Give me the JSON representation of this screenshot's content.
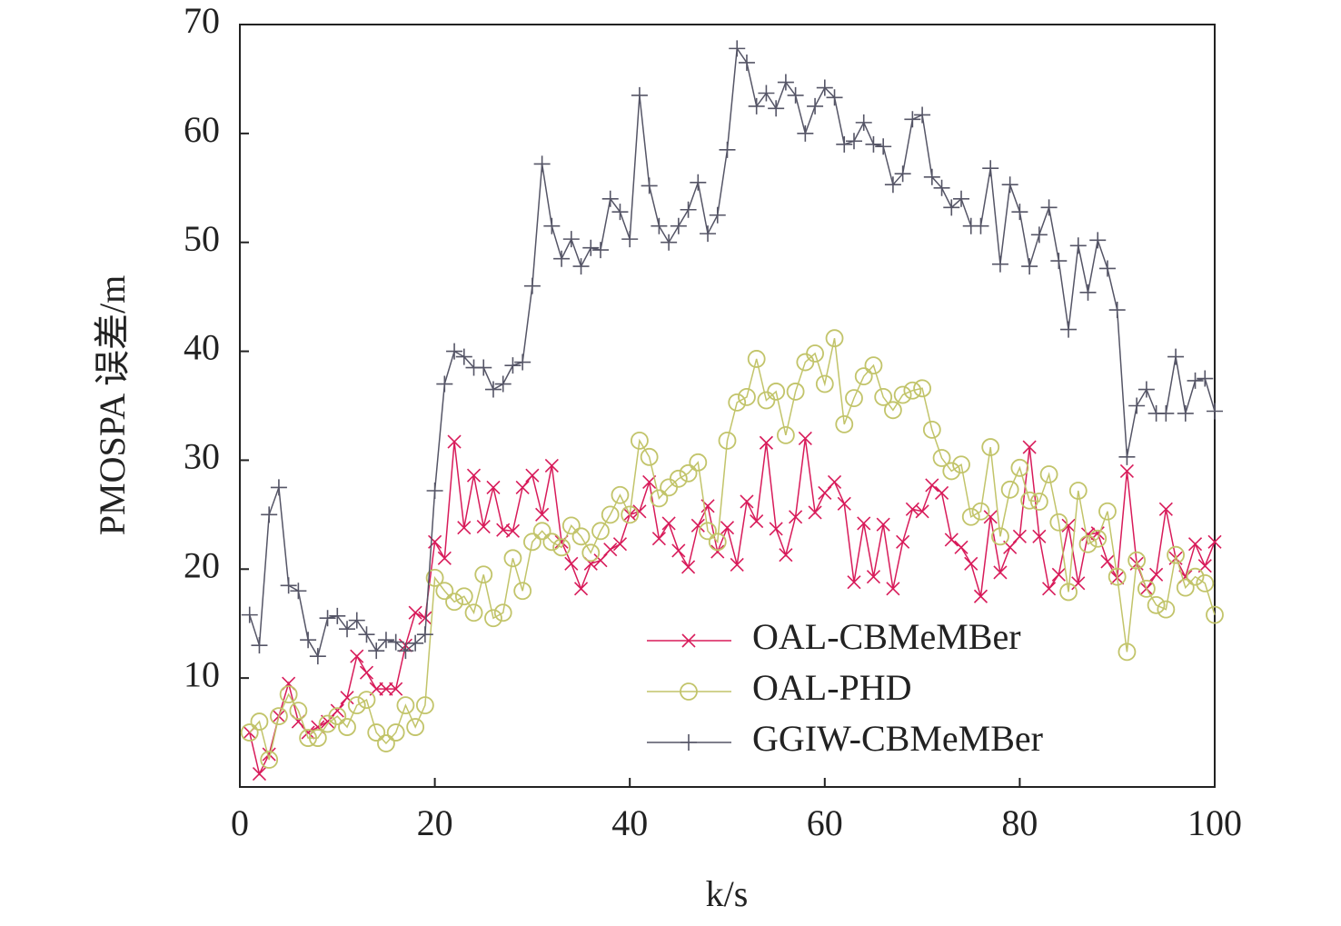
{
  "chart_data": {
    "type": "line",
    "xlabel": "k/s",
    "ylabel": "PMOSPA 误差/m",
    "xlim": [
      0,
      100
    ],
    "ylim": [
      0,
      70
    ],
    "xticks": [
      0,
      20,
      40,
      60,
      80,
      100
    ],
    "yticks": [
      10,
      20,
      30,
      40,
      50,
      60,
      70
    ],
    "legend": "lower right",
    "x": [
      1,
      2,
      3,
      4,
      5,
      6,
      7,
      8,
      9,
      10,
      11,
      12,
      13,
      14,
      15,
      16,
      17,
      18,
      19,
      20,
      21,
      22,
      23,
      24,
      25,
      26,
      27,
      28,
      29,
      30,
      31,
      32,
      33,
      34,
      35,
      36,
      37,
      38,
      39,
      40,
      41,
      42,
      43,
      44,
      45,
      46,
      47,
      48,
      49,
      50,
      51,
      52,
      53,
      54,
      55,
      56,
      57,
      58,
      59,
      60,
      61,
      62,
      63,
      64,
      65,
      66,
      67,
      68,
      69,
      70,
      71,
      72,
      73,
      74,
      75,
      76,
      77,
      78,
      79,
      80,
      81,
      82,
      83,
      84,
      85,
      86,
      87,
      88,
      89,
      90,
      91,
      92,
      93,
      94,
      95,
      96,
      97,
      98,
      99,
      100
    ],
    "series": [
      {
        "name": "OAL-CBMeMBer",
        "color": "#d81b5a",
        "marker": "x",
        "values": [
          5,
          1.2,
          3,
          6.5,
          9.5,
          6,
          5,
          5.5,
          6,
          7,
          8.2,
          12,
          10.5,
          9,
          9,
          9,
          13,
          16,
          15.5,
          22.5,
          21,
          31.7,
          23.8,
          28.6,
          23.9,
          27.5,
          23.6,
          23.5,
          27.5,
          28.6,
          25,
          29.5,
          22.5,
          20.5,
          18.2,
          20.5,
          20.8,
          21.8,
          22.3,
          25,
          25.3,
          28,
          22.8,
          24.2,
          21.7,
          20.2,
          24,
          25.8,
          21.6,
          23.8,
          20.4,
          26.2,
          24.4,
          31.6,
          23.7,
          21.3,
          24.8,
          32,
          25.2,
          27,
          28,
          26,
          18.8,
          24.2,
          19.3,
          24.1,
          18.2,
          22.5,
          25.5,
          25.3,
          27.7,
          27,
          22.7,
          22,
          20.5,
          17.5,
          24.8,
          19.7,
          22,
          23,
          31.2,
          23,
          18.2,
          19.5,
          24,
          18.7,
          23.2,
          23.3,
          20.7,
          19.2,
          29,
          20.5,
          18.2,
          19.5,
          25.5,
          21,
          19.3,
          22.3,
          20.3,
          22.5
        ]
      },
      {
        "name": "OAL-PHD",
        "color": "#c2c46a",
        "marker": "o",
        "values": [
          5,
          6,
          2.5,
          6.5,
          8.5,
          7,
          4.5,
          4.5,
          5.8,
          6.5,
          5.5,
          7.5,
          8,
          5,
          4,
          5,
          7.5,
          5.5,
          7.5,
          19.2,
          18,
          17,
          17.5,
          16,
          19.5,
          15.5,
          16,
          21,
          18,
          22.5,
          23.5,
          22.5,
          22,
          24,
          23,
          21.5,
          23.5,
          25,
          26.8,
          25,
          31.8,
          30.3,
          26.5,
          27.5,
          28.3,
          28.8,
          29.8,
          23.5,
          22.5,
          31.8,
          35.3,
          35.8,
          39.3,
          35.5,
          36.3,
          32.3,
          36.3,
          39,
          39.8,
          37,
          41.2,
          33.3,
          35.7,
          37.7,
          38.7,
          35.8,
          34.6,
          36,
          36.4,
          36.6,
          32.8,
          30.2,
          29,
          29.6,
          24.8,
          25.3,
          31.2,
          23,
          27.3,
          29.3,
          26.3,
          26.2,
          28.7,
          24.3,
          17.9,
          27.2,
          22.3,
          22.8,
          25.3,
          19.3,
          12.4,
          20.8,
          18.2,
          16.7,
          16.3,
          21.3,
          18.3,
          19.3,
          18.7,
          15.8
        ]
      },
      {
        "name": "GGIW-CBMeMBer",
        "color": "#555566",
        "marker": "+",
        "values": [
          15.8,
          13,
          25,
          27.5,
          18.5,
          18,
          13.5,
          12,
          15.5,
          15.7,
          14.5,
          15.3,
          14,
          12.5,
          13.5,
          13.3,
          12.5,
          13.2,
          14,
          27.2,
          37,
          40,
          39.5,
          38.5,
          38.5,
          36.5,
          37,
          38.7,
          39,
          46,
          57.2,
          51.5,
          48.5,
          50.3,
          47.8,
          49.5,
          49.3,
          54,
          52.8,
          50.3,
          63.5,
          55.2,
          51.5,
          50,
          51.5,
          53,
          55.5,
          50.8,
          52.5,
          58.5,
          67.8,
          66.5,
          62.5,
          63.7,
          62.3,
          64.7,
          63.5,
          60,
          62.5,
          64.2,
          63.3,
          59,
          59.3,
          61,
          59,
          58.8,
          55.3,
          56.3,
          61.3,
          61.7,
          56,
          55,
          53.2,
          54,
          51.5,
          51.5,
          56.8,
          48,
          55.3,
          52.8,
          47.8,
          50.7,
          53.2,
          48.3,
          42,
          49.7,
          45.4,
          50.2,
          47.6,
          43.8,
          30.3,
          35,
          36.5,
          34.3,
          34.3,
          39.5,
          34.3,
          37.3,
          37.5,
          34.5
        ]
      }
    ]
  }
}
